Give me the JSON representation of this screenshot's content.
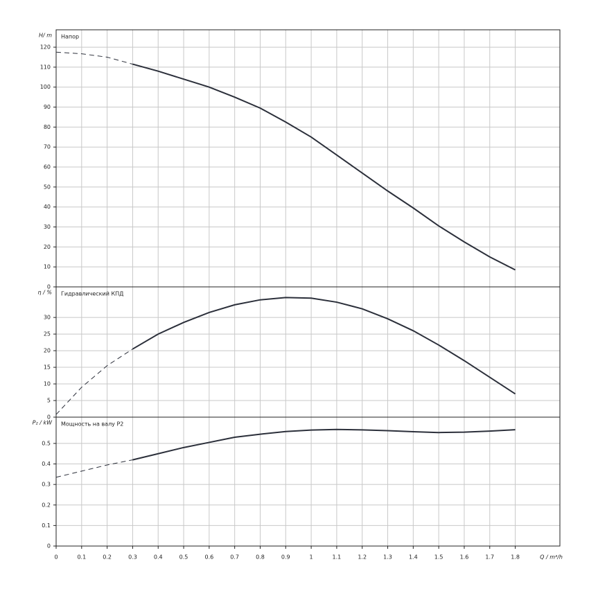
{
  "chart_data": [
    {
      "type": "line",
      "ylabel": "H/ m",
      "title": "Напор",
      "x": [
        0,
        0.1,
        0.2,
        0.3,
        0.4,
        0.5,
        0.6,
        0.7,
        0.8,
        0.9,
        1.0,
        1.1,
        1.2,
        1.3,
        1.4,
        1.5,
        1.6,
        1.7,
        1.8
      ],
      "values": [
        117.5,
        116.7,
        115,
        111.5,
        108,
        104,
        100,
        95,
        89.5,
        82.5,
        75,
        66,
        57,
        48,
        39.5,
        30.5,
        22.5,
        15,
        8.5
      ],
      "dashed_x_max": 0.3,
      "color": "#2b2f3a",
      "xlim": [
        0,
        1.975
      ],
      "ylim": [
        0,
        128.7
      ],
      "yticks": [
        0,
        10,
        20,
        30,
        40,
        50,
        60,
        70,
        80,
        90,
        100,
        110,
        120
      ],
      "grid": true
    },
    {
      "type": "line",
      "ylabel": "η / %",
      "title": "Гидравлический КПД",
      "x": [
        0,
        0.1,
        0.2,
        0.3,
        0.4,
        0.5,
        0.6,
        0.7,
        0.8,
        0.9,
        1.0,
        1.1,
        1.2,
        1.3,
        1.4,
        1.5,
        1.6,
        1.7,
        1.8
      ],
      "values": [
        0.8,
        9,
        15.5,
        20.5,
        25,
        28.5,
        31.5,
        33.8,
        35.3,
        36,
        35.8,
        34.6,
        32.6,
        29.6,
        26,
        21.7,
        17,
        12,
        7
      ],
      "dashed_x_max": 0.3,
      "color": "#2b2f3a",
      "xlim": [
        0,
        1.975
      ],
      "ylim": [
        0,
        39.2
      ],
      "yticks": [
        0,
        5,
        10,
        15,
        20,
        25,
        30
      ],
      "grid": true
    },
    {
      "type": "line",
      "ylabel": "P₂ / kW",
      "title": "Мощность на валу P2",
      "xlabel": "Q / m³/h",
      "x": [
        0,
        0.1,
        0.2,
        0.3,
        0.4,
        0.5,
        0.6,
        0.7,
        0.8,
        0.9,
        1.0,
        1.1,
        1.2,
        1.3,
        1.4,
        1.5,
        1.6,
        1.7,
        1.8
      ],
      "values": [
        0.335,
        0.365,
        0.395,
        0.42,
        0.45,
        0.48,
        0.505,
        0.53,
        0.545,
        0.558,
        0.565,
        0.568,
        0.566,
        0.562,
        0.557,
        0.553,
        0.555,
        0.56,
        0.567
      ],
      "dashed_x_max": 0.3,
      "color": "#2b2f3a",
      "xlim": [
        0,
        1.975
      ],
      "ylim": [
        0,
        0.628
      ],
      "yticks": [
        0,
        0.1,
        0.2,
        0.3,
        0.4,
        0.5
      ],
      "grid": true,
      "xticks": [
        0,
        0.1,
        0.2,
        0.3,
        0.4,
        0.5,
        0.6,
        0.7,
        0.8,
        0.9,
        1,
        1.1,
        1.2,
        1.3,
        1.4,
        1.5,
        1.6,
        1.7,
        1.8
      ]
    }
  ]
}
